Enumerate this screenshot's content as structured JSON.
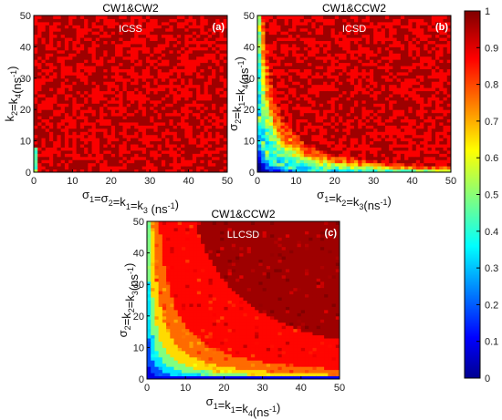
{
  "chart_data": [
    {
      "type": "heatmap",
      "panel_label": "(a)",
      "title": "CW1&CW2",
      "annotation": "ICSS",
      "xlabel_parts": [
        "σ",
        "1",
        "=σ",
        "2",
        "=k",
        "1",
        "=k",
        "3",
        " (ns",
        "-1",
        ")"
      ],
      "ylabel_parts": [
        "k",
        "2",
        "=k",
        "4",
        "(ns",
        "-1",
        ")"
      ],
      "xlim": [
        0,
        50
      ],
      "ylim": [
        0,
        50
      ],
      "x_ticks": [
        "0",
        "10",
        "20",
        "30",
        "40",
        "50"
      ],
      "y_ticks": [
        "0",
        "10",
        "20",
        "30",
        "40",
        "50"
      ],
      "description_values": {
        "bulk_value": 0.95,
        "low_region_value": 0.5
      }
    },
    {
      "type": "heatmap",
      "panel_label": "(b)",
      "title": "CW1&CCW2",
      "annotation": "ICSD",
      "xlabel_parts": [
        "σ",
        "1",
        "=k",
        "2",
        "=k",
        "3",
        "(ns",
        "-1",
        ")"
      ],
      "ylabel_parts": [
        "σ",
        "2",
        "=k",
        "1",
        "=k",
        "4",
        "(ns",
        "-1",
        ")"
      ],
      "xlim": [
        0,
        50
      ],
      "ylim": [
        0,
        50
      ],
      "x_ticks": [
        "0",
        "10",
        "20",
        "30",
        "40",
        "50"
      ],
      "y_ticks": [
        "0",
        "10",
        "20",
        "30",
        "40",
        "50"
      ],
      "description_values": {
        "bulk_value": 0.95,
        "low_region_value": 0.3
      }
    },
    {
      "type": "heatmap",
      "panel_label": "(c)",
      "title": "CW1&CCW2",
      "annotation": "LLCSD",
      "xlabel_parts": [
        "σ",
        "1",
        "=k",
        "1",
        "=k",
        "4",
        "(ns",
        "-1",
        ")"
      ],
      "ylabel_parts": [
        "σ",
        "2",
        "=k",
        "2",
        "=k",
        "3",
        "(ns",
        "-1",
        ")"
      ],
      "xlim": [
        0,
        50
      ],
      "ylim": [
        0,
        50
      ],
      "x_ticks": [
        "0",
        "10",
        "20",
        "30",
        "40",
        "50"
      ],
      "y_ticks": [
        "0",
        "10",
        "20",
        "30",
        "40",
        "50"
      ],
      "description_values": {
        "bulk_value": 1.0,
        "low_region_value": 0.1
      }
    }
  ],
  "colorbar": {
    "range": [
      0,
      1
    ],
    "ticks": [
      "0",
      "0.1",
      "0.2",
      "0.3",
      "0.4",
      "0.5",
      "0.6",
      "0.7",
      "0.8",
      "0.9",
      "1"
    ]
  }
}
